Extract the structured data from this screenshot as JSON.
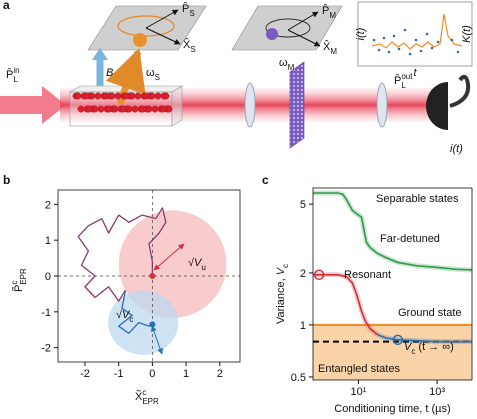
{
  "panel_a": {
    "label": "a",
    "ps": {
      "base": "P̂",
      "sub": "S"
    },
    "xs": {
      "base": "X̂",
      "sub": "S"
    },
    "pm": {
      "base": "P̂",
      "sub": "M"
    },
    "xm": {
      "base": "X̂",
      "sub": "M"
    },
    "b": "B",
    "ws": {
      "base": "ω",
      "sub": "S"
    },
    "wm": {
      "base": "ω",
      "sub": "M"
    },
    "pin": {
      "base": "P̂",
      "sup": "in",
      "sub": "L"
    },
    "pout": {
      "base": "P̂",
      "sup": "out",
      "sub": "L"
    },
    "inset_left": "i(t)",
    "inset_right": "K(t)",
    "inset_x": "t",
    "detector": "i(t)"
  },
  "chart_data": [
    {
      "type": "trajectory",
      "label": "b",
      "xlabel": {
        "base": "X̃",
        "sup": "c",
        "sub": "EPR"
      },
      "ylabel": {
        "base": "P̃",
        "sup": "c",
        "sub": "EPR"
      },
      "xlim": [
        -2.8,
        2.6
      ],
      "ylim": [
        -2.4,
        2.4
      ],
      "xticks": [
        -2,
        -1,
        0,
        1,
        2
      ],
      "yticks": [
        -2,
        -1,
        0,
        1,
        2
      ],
      "reference_lines": {
        "x": 0,
        "y": 0
      },
      "ellipses": [
        {
          "cx": 0.6,
          "cy": 0.33,
          "rx": 1.6,
          "ry": 1.5,
          "color": "#f6b9bc"
        },
        {
          "cx": -0.27,
          "cy": -1.3,
          "rx": 1.04,
          "ry": 0.9,
          "color": "#bcd8ee"
        }
      ],
      "series": [
        {
          "color": "#8a3a72",
          "x": [
            0,
            0,
            -0.1,
            0.2,
            0.4,
            0.3,
            0.1,
            -0.3,
            -0.7,
            -1.0,
            -1.3,
            -1.5,
            -1.9,
            -2.2,
            -1.9,
            -2.1,
            -1.7,
            -2.0,
            -1.7,
            -1.3,
            -1.0,
            -0.8
          ],
          "y": [
            0,
            0.4,
            0.9,
            1.2,
            1.5,
            1.9,
            1.6,
            1.7,
            1.5,
            1.7,
            1.2,
            1.6,
            1.4,
            1.1,
            0.7,
            0.3,
            0.0,
            -0.3,
            -0.6,
            -0.3,
            -0.7,
            -0.4
          ]
        },
        {
          "color": "#2a6fb0",
          "x": [
            -0.8,
            -0.9,
            -0.6,
            -1.0,
            -0.7,
            -0.4,
            -0.1,
            0
          ],
          "y": [
            -0.4,
            -0.9,
            -1.1,
            -1.4,
            -1.6,
            -1.3,
            -1.4,
            -1.35
          ]
        }
      ],
      "dots": [
        {
          "x": 0,
          "y": 0,
          "color": "#d0313b"
        },
        {
          "x": 0,
          "y": -1.35,
          "color": "#2a6fb0"
        }
      ],
      "annotations": [
        {
          "base": "√V",
          "sub": "u"
        },
        {
          "base": "√V",
          "sub": "c"
        }
      ]
    },
    {
      "type": "loglog",
      "label": "c",
      "xlabel": "Conditioning time, t (µs)",
      "ylabel": {
        "prefix": "Variance, ",
        "base": "V",
        "sub": "c"
      },
      "xlim": [
        0.7,
        7700
      ],
      "ylim": [
        0.48,
        6.2
      ],
      "xticks": [
        {
          "value": 10,
          "label": "10¹"
        },
        {
          "value": 1000,
          "label": "10³"
        }
      ],
      "yticks": [
        0.5,
        1,
        2,
        5
      ],
      "shade": {
        "below": 1,
        "color": "#fbd3a8"
      },
      "hlines": [
        {
          "y": 1,
          "color": "#f08a24",
          "dash": false
        },
        {
          "y": 0.8,
          "color": "#000000",
          "dash": true
        }
      ],
      "series": [
        {
          "color": "#2e9a4a",
          "x": [
            0.7,
            3,
            4,
            5,
            7,
            9,
            12,
            14,
            16,
            20,
            30,
            50,
            100,
            300,
            1000,
            3000,
            7700
          ],
          "y": [
            5.8,
            5.8,
            5.7,
            5.3,
            4.6,
            4.4,
            4.2,
            3.5,
            3.0,
            2.8,
            2.6,
            2.45,
            2.3,
            2.2,
            2.15,
            2.1,
            2.08
          ]
        },
        {
          "color": "#d0313b",
          "x": [
            0.7,
            1,
            3,
            5,
            7,
            9,
            12,
            15,
            20,
            30
          ],
          "y": [
            1.95,
            1.95,
            1.95,
            1.9,
            1.75,
            1.5,
            1.2,
            1.05,
            0.95,
            0.88
          ]
        },
        {
          "color": "#2a6fb0",
          "x": [
            30,
            50,
            100,
            300,
            1000,
            7700
          ],
          "y": [
            0.88,
            0.84,
            0.82,
            0.81,
            0.8,
            0.8
          ]
        }
      ],
      "markers": [
        {
          "x": 1,
          "y": 1.95,
          "color": "#d0313b"
        },
        {
          "x": 100,
          "y": 0.82,
          "color": "#2a6fb0"
        }
      ],
      "annotations": [
        "Separable states",
        "Far-detuned",
        "Resonant",
        "Ground state",
        "Entangled states",
        {
          "base": "V",
          "sub": "c",
          "rest": " (t → ∞)"
        }
      ]
    }
  ]
}
